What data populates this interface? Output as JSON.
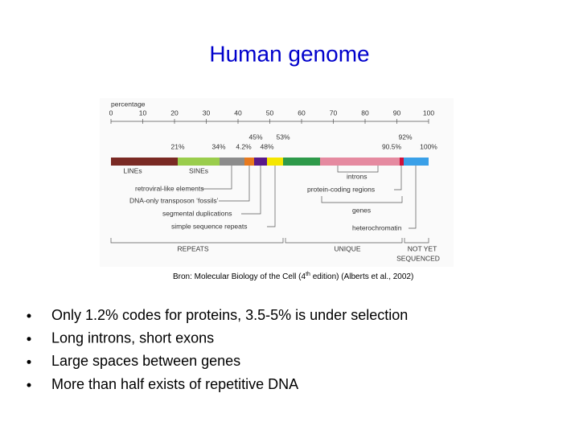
{
  "title": "Human genome",
  "figure": {
    "axis_label": "percentage",
    "ticks": [
      "0",
      "10",
      "20",
      "30",
      "40",
      "50",
      "60",
      "70",
      "80",
      "90",
      "100"
    ],
    "percent_labels": [
      "45%",
      "53%",
      "92%",
      "21%",
      "34%",
      "4.2%",
      "48%",
      "90.5%",
      "100%"
    ],
    "bar_labels": [
      "LINEs",
      "SINEs"
    ],
    "left_labels": [
      "retroviral-like elements",
      "DNA-only transposon ‘fossils’",
      "segmental duplications",
      "simple sequence repeats"
    ],
    "right_labels": [
      "introns",
      "protein-coding regions",
      "genes",
      "heterochromatin"
    ],
    "groups": [
      "REPEATS",
      "UNIQUE",
      "NOT YET",
      "SEQUENCED"
    ]
  },
  "caption": {
    "before": "Bron: Molecular Biology of the Cell (4",
    "sup": "th",
    "after": " edition) (Alberts et al., 2002)"
  },
  "bullets": [
    "Only 1.2% codes for proteins, 3.5-5% is under selection",
    "Long introns, short exons",
    "Large spaces between genes",
    "More than half exists of repetitive DNA"
  ]
}
